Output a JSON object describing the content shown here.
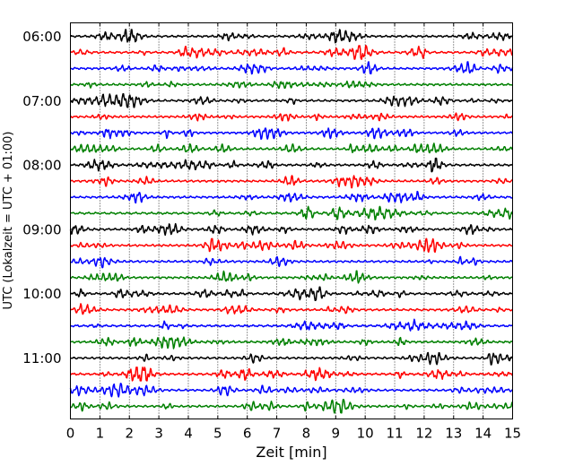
{
  "chart_data": {
    "type": "line",
    "title": "",
    "xlabel": "Zeit  [min]",
    "ylabel": "UTC (Lokalzeit = UTC + 01:00)",
    "xlim": [
      0,
      15
    ],
    "x_ticks": [
      0,
      1,
      2,
      3,
      4,
      5,
      6,
      7,
      8,
      9,
      10,
      11,
      12,
      13,
      14,
      15
    ],
    "x_tick_labels": [
      "0",
      "1",
      "2",
      "3",
      "4",
      "5",
      "6",
      "7",
      "8",
      "9",
      "10",
      "11",
      "12",
      "13",
      "14",
      "15"
    ],
    "y_tick_labels": [
      "06:00",
      "07:00",
      "08:00",
      "09:00",
      "10:00",
      "11:00"
    ],
    "y_tick_rows": [
      0,
      4,
      8,
      12,
      16,
      20
    ],
    "trace_colors": [
      "#000000",
      "#ff0000",
      "#0000ff",
      "#008000"
    ],
    "traces_count": 24,
    "start_time": "06:00",
    "minutes_per_trace": 15,
    "vertical_grid": "dotted",
    "legend": "none"
  }
}
